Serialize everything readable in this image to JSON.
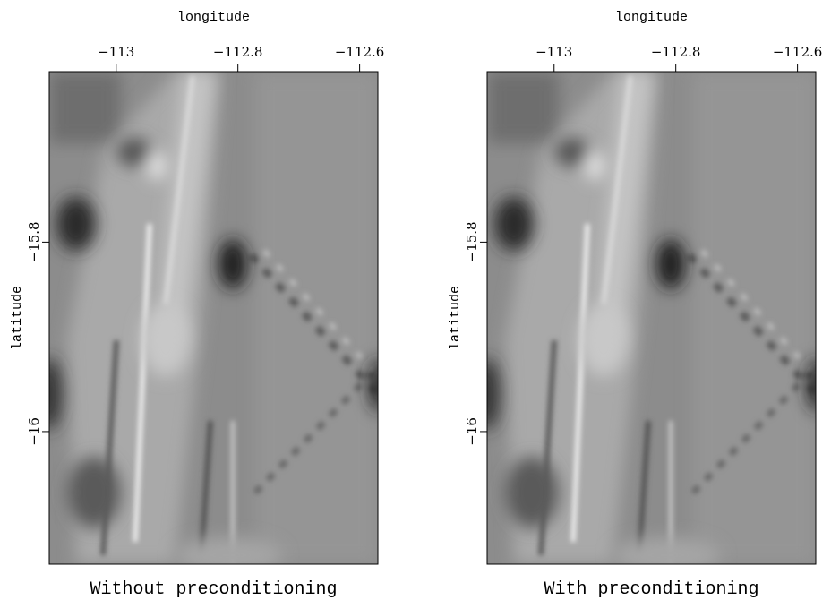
{
  "chart_data": [
    {
      "type": "image",
      "title": "Without preconditioning",
      "xlabel": "longitude",
      "ylabel": "latitude",
      "xlim": [
        -113.11,
        -112.57
      ],
      "ylim": [
        -16.14,
        -15.62
      ],
      "xticks": [
        {
          "value": -113,
          "label": "−113"
        },
        {
          "value": -112.8,
          "label": "−112.8"
        },
        {
          "value": -112.6,
          "label": "−112.6"
        }
      ],
      "yticks": [
        {
          "value": -15.8,
          "label": "−15.8"
        },
        {
          "value": -16,
          "label": "−16"
        }
      ]
    },
    {
      "type": "image",
      "title": "With preconditioning",
      "xlabel": "longitude",
      "ylabel": "latitude",
      "xlim": [
        -113.11,
        -112.57
      ],
      "ylim": [
        -16.14,
        -15.62
      ],
      "xticks": [
        {
          "value": -113,
          "label": "−113"
        },
        {
          "value": -112.8,
          "label": "−112.8"
        },
        {
          "value": -112.6,
          "label": "−112.6"
        }
      ],
      "yticks": [
        {
          "value": -15.8,
          "label": "−15.8"
        },
        {
          "value": -16,
          "label": "−16"
        }
      ]
    }
  ]
}
